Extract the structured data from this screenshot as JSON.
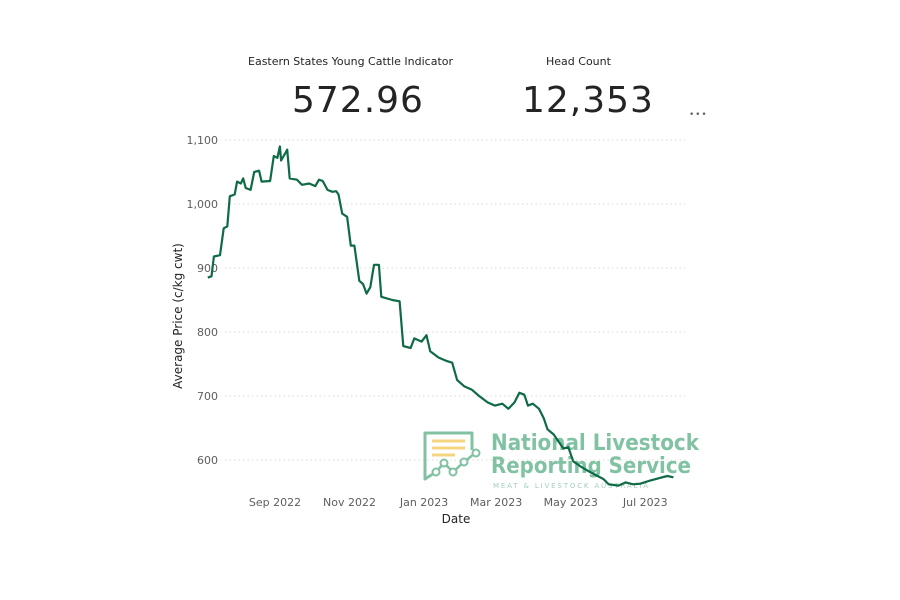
{
  "cards": [
    {
      "title": "Eastern States Young Cattle Indicator",
      "value": "572.96"
    },
    {
      "title": "Head Count",
      "value": "12,353"
    }
  ],
  "more_options_icon": "ellipsis-icon",
  "watermark": {
    "line1": "National Livestock",
    "line2": "Reporting Service",
    "line3": "MEAT & LIVESTOCK AUSTRALIA",
    "color": "#7bbf9f",
    "accent": "#f5d27a"
  },
  "chart_data": {
    "type": "line",
    "title": "",
    "xlabel": "Date",
    "ylabel": "Average Price (c/kg cwt)",
    "ylim": [
      560,
      1100
    ],
    "yticks": [
      "1,100",
      "1,000",
      "900",
      "800",
      "700",
      "600"
    ],
    "xticks": [
      "Sep 2022",
      "Nov 2022",
      "Jan 2023",
      "Mar 2023",
      "May 2023",
      "Jul 2023"
    ],
    "grid": "horizontal dotted",
    "line_color": "#0e6b45",
    "series": [
      {
        "name": "Eastern States Young Cattle Indicator",
        "points": [
          {
            "x": "2022-07-17",
            "y": 885
          },
          {
            "x": "2022-07-20",
            "y": 887
          },
          {
            "x": "2022-07-22",
            "y": 918
          },
          {
            "x": "2022-07-27",
            "y": 920
          },
          {
            "x": "2022-07-30",
            "y": 962
          },
          {
            "x": "2022-08-02",
            "y": 965
          },
          {
            "x": "2022-08-04",
            "y": 1012
          },
          {
            "x": "2022-08-08",
            "y": 1015
          },
          {
            "x": "2022-08-10",
            "y": 1035
          },
          {
            "x": "2022-08-13",
            "y": 1032
          },
          {
            "x": "2022-08-15",
            "y": 1040
          },
          {
            "x": "2022-08-17",
            "y": 1025
          },
          {
            "x": "2022-08-21",
            "y": 1022
          },
          {
            "x": "2022-08-24",
            "y": 1050
          },
          {
            "x": "2022-08-28",
            "y": 1052
          },
          {
            "x": "2022-08-30",
            "y": 1035
          },
          {
            "x": "2022-09-06",
            "y": 1036
          },
          {
            "x": "2022-09-09",
            "y": 1075
          },
          {
            "x": "2022-09-12",
            "y": 1072
          },
          {
            "x": "2022-09-14",
            "y": 1090
          },
          {
            "x": "2022-09-15",
            "y": 1068
          },
          {
            "x": "2022-09-18",
            "y": 1078
          },
          {
            "x": "2022-09-20",
            "y": 1085
          },
          {
            "x": "2022-09-22",
            "y": 1040
          },
          {
            "x": "2022-09-28",
            "y": 1038
          },
          {
            "x": "2022-10-02",
            "y": 1030
          },
          {
            "x": "2022-10-08",
            "y": 1032
          },
          {
            "x": "2022-10-13",
            "y": 1028
          },
          {
            "x": "2022-10-16",
            "y": 1038
          },
          {
            "x": "2022-10-19",
            "y": 1036
          },
          {
            "x": "2022-10-23",
            "y": 1022
          },
          {
            "x": "2022-10-27",
            "y": 1019
          },
          {
            "x": "2022-10-30",
            "y": 1020
          },
          {
            "x": "2022-11-01",
            "y": 1015
          },
          {
            "x": "2022-11-04",
            "y": 985
          },
          {
            "x": "2022-11-08",
            "y": 980
          },
          {
            "x": "2022-11-11",
            "y": 935
          },
          {
            "x": "2022-11-14",
            "y": 935
          },
          {
            "x": "2022-11-18",
            "y": 880
          },
          {
            "x": "2022-11-21",
            "y": 875
          },
          {
            "x": "2022-11-24",
            "y": 860
          },
          {
            "x": "2022-11-27",
            "y": 870
          },
          {
            "x": "2022-11-30",
            "y": 905
          },
          {
            "x": "2022-12-04",
            "y": 905
          },
          {
            "x": "2022-12-06",
            "y": 855
          },
          {
            "x": "2022-12-15",
            "y": 850
          },
          {
            "x": "2022-12-21",
            "y": 848
          },
          {
            "x": "2022-12-24",
            "y": 778
          },
          {
            "x": "2022-12-30",
            "y": 775
          },
          {
            "x": "2023-01-02",
            "y": 790
          },
          {
            "x": "2023-01-08",
            "y": 785
          },
          {
            "x": "2023-01-12",
            "y": 795
          },
          {
            "x": "2023-01-15",
            "y": 770
          },
          {
            "x": "2023-01-22",
            "y": 760
          },
          {
            "x": "2023-01-28",
            "y": 755
          },
          {
            "x": "2023-02-02",
            "y": 752
          },
          {
            "x": "2023-02-06",
            "y": 725
          },
          {
            "x": "2023-02-12",
            "y": 715
          },
          {
            "x": "2023-02-18",
            "y": 710
          },
          {
            "x": "2023-02-24",
            "y": 700
          },
          {
            "x": "2023-03-03",
            "y": 690
          },
          {
            "x": "2023-03-09",
            "y": 685
          },
          {
            "x": "2023-03-15",
            "y": 688
          },
          {
            "x": "2023-03-20",
            "y": 680
          },
          {
            "x": "2023-03-25",
            "y": 690
          },
          {
            "x": "2023-03-29",
            "y": 705
          },
          {
            "x": "2023-04-02",
            "y": 702
          },
          {
            "x": "2023-04-05",
            "y": 685
          },
          {
            "x": "2023-04-09",
            "y": 688
          },
          {
            "x": "2023-04-14",
            "y": 680
          },
          {
            "x": "2023-04-18",
            "y": 665
          },
          {
            "x": "2023-04-21",
            "y": 648
          },
          {
            "x": "2023-04-26",
            "y": 640
          },
          {
            "x": "2023-05-04",
            "y": 618
          },
          {
            "x": "2023-05-08",
            "y": 620
          },
          {
            "x": "2023-05-12",
            "y": 598
          },
          {
            "x": "2023-05-18",
            "y": 590
          },
          {
            "x": "2023-05-25",
            "y": 582
          },
          {
            "x": "2023-06-01",
            "y": 575
          },
          {
            "x": "2023-06-06",
            "y": 570
          },
          {
            "x": "2023-06-10",
            "y": 562
          },
          {
            "x": "2023-06-18",
            "y": 560
          },
          {
            "x": "2023-06-24",
            "y": 565
          },
          {
            "x": "2023-06-30",
            "y": 562
          },
          {
            "x": "2023-07-06",
            "y": 563
          },
          {
            "x": "2023-07-14",
            "y": 568
          },
          {
            "x": "2023-07-22",
            "y": 572
          },
          {
            "x": "2023-07-28",
            "y": 575
          },
          {
            "x": "2023-08-02",
            "y": 573
          }
        ]
      }
    ]
  }
}
